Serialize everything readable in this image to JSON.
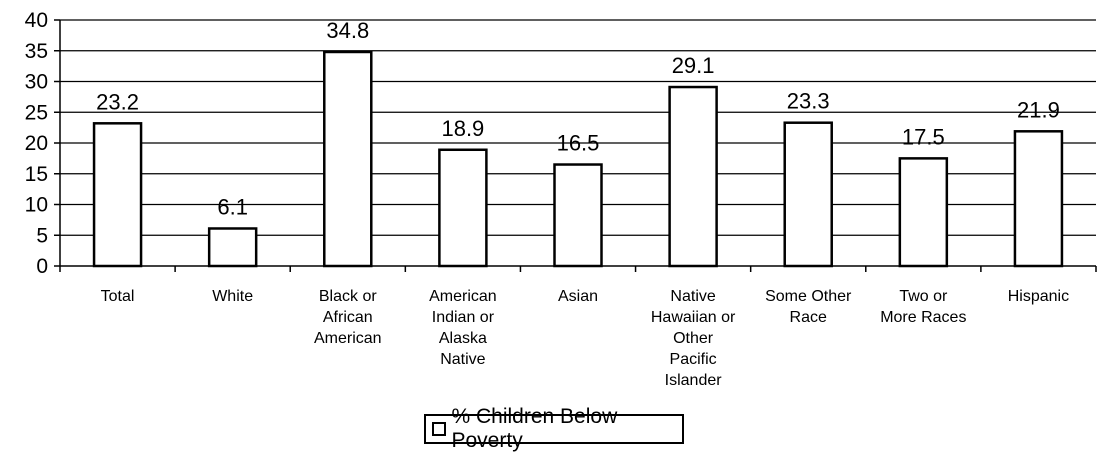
{
  "chart_data": {
    "type": "bar",
    "categories": [
      [
        "Total"
      ],
      [
        "White"
      ],
      [
        "Black or",
        "African",
        "American"
      ],
      [
        "American",
        "Indian or",
        "Alaska",
        "Native"
      ],
      [
        "Asian"
      ],
      [
        "Native",
        "Hawaiian or",
        "Other",
        "Pacific",
        "Islander"
      ],
      [
        "Some Other",
        "Race"
      ],
      [
        "Two or",
        "More Races"
      ],
      [
        "Hispanic"
      ]
    ],
    "series": [
      {
        "name": "% Children Below Poverty",
        "values": [
          23.2,
          6.1,
          34.8,
          18.9,
          16.5,
          29.1,
          23.3,
          17.5,
          21.9
        ]
      }
    ],
    "data_labels": [
      "23.2",
      "6.1",
      "34.8",
      "18.9",
      "16.5",
      "29.1",
      "23.3",
      "17.5",
      "21.9"
    ],
    "ylim": [
      0,
      40
    ],
    "yticks": [
      0,
      5,
      10,
      15,
      20,
      25,
      30,
      35,
      40
    ],
    "grid": true,
    "legend_position": "bottom",
    "colors": {
      "bar_fill": "#ffffff",
      "bar_stroke": "#000000",
      "grid": "#000000"
    }
  }
}
